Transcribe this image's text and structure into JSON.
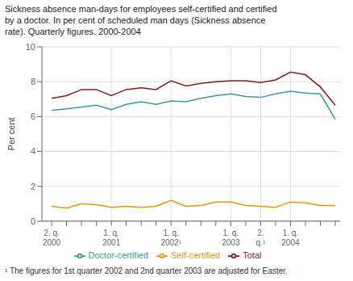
{
  "chart_data": {
    "type": "line",
    "title": "Sickness absence man-days for employees self-certified and certified\nby a doctor. In per cent of scheduled man days (Sickness absence\nrate). Quarterly figures. 2000-2004",
    "ylabel": "Per cent",
    "annotations": [
      "¹ The figures for 1st quarter 2002 and 2nd quarter 2003 are adjusted for Easter."
    ],
    "categories": [
      "2. q.\n2000",
      null,
      null,
      null,
      "1. q.\n2001",
      null,
      null,
      null,
      "1. q.\n2002¹",
      null,
      null,
      null,
      "1. q.\n2003",
      null,
      "2.\nq.¹",
      null,
      "1. q.\n2004",
      null,
      null,
      null
    ],
    "series": [
      {
        "name": "Total",
        "color": "#8B1A1A",
        "values": [
          7.05,
          7.2,
          7.55,
          7.55,
          7.2,
          7.55,
          7.65,
          7.55,
          8.05,
          7.75,
          7.9,
          8.0,
          8.05,
          8.05,
          7.95,
          8.1,
          8.55,
          8.4,
          7.7,
          6.65
        ]
      },
      {
        "name": "Self-certified",
        "color": "#E8960A",
        "values": [
          0.85,
          0.75,
          1.0,
          0.95,
          0.8,
          0.85,
          0.8,
          0.85,
          1.2,
          0.85,
          0.9,
          1.1,
          1.1,
          0.9,
          0.85,
          0.8,
          1.1,
          1.05,
          0.9,
          0.9
        ]
      },
      {
        "name": "Doctor-certified",
        "color": "#3A9B9B",
        "values": [
          6.35,
          6.45,
          6.55,
          6.65,
          6.4,
          6.7,
          6.85,
          6.7,
          6.9,
          6.85,
          7.05,
          7.2,
          7.3,
          7.15,
          7.1,
          7.3,
          7.45,
          7.35,
          7.3,
          5.85
        ]
      }
    ],
    "ylim": [
      0,
      10
    ],
    "yticks": [
      0,
      2,
      4,
      6,
      8,
      10
    ],
    "grid": true
  }
}
